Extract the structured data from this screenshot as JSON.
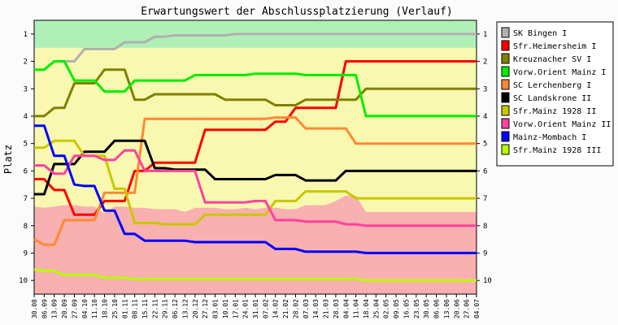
{
  "chart_data": {
    "type": "line",
    "title": "Erwartungswert der Abschlussplatzierung (Verlauf)",
    "ylabel": "Platz",
    "xlabel": "",
    "ylim": [
      1,
      10
    ],
    "y_inverted": true,
    "grid": false,
    "legend_position": "right",
    "y_ticks": [
      "1",
      "2",
      "3",
      "4",
      "5",
      "6",
      "7",
      "8",
      "9",
      "10"
    ],
    "categories": [
      "30.08",
      "06.09",
      "13.09",
      "20.09",
      "27.09",
      "04.10",
      "11.10",
      "18.10",
      "25.10",
      "01.11",
      "08.11",
      "15.11",
      "22.11",
      "29.11",
      "06.12",
      "13.12",
      "20.12",
      "27.12",
      "03.01",
      "10.01",
      "17.01",
      "24.01",
      "31.01",
      "07.02",
      "14.02",
      "21.02",
      "28.02",
      "07.03",
      "14.03",
      "21.03",
      "28.03",
      "04.04",
      "11.04",
      "18.04",
      "25.04",
      "02.05",
      "09.05",
      "16.05",
      "23.05",
      "30.05",
      "06.06",
      "13.06",
      "20.06",
      "27.06",
      "04.07"
    ],
    "background_bands": {
      "top_band_color": "#b0f0b8",
      "middle_band_color": "#f8f8b0",
      "bottom_band_color": "#f8b0b0",
      "top_band_upper": [
        0.5,
        0.5,
        0.5,
        0.5,
        0.5,
        0.5,
        0.5,
        0.5,
        0.5,
        0.5,
        0.5,
        0.5,
        0.5,
        0.5,
        0.5,
        0.5,
        0.5,
        0.5,
        0.5,
        0.5,
        0.5,
        0.5,
        0.5,
        0.5,
        0.5,
        0.5,
        0.5,
        0.5,
        0.5,
        0.5,
        0.5,
        0.5,
        0.5,
        0.5,
        0.5,
        0.5,
        0.5,
        0.5,
        0.5,
        0.5,
        0.5,
        0.5,
        0.5,
        0.5,
        0.5
      ],
      "top_band_lower": [
        1.5,
        1.5,
        1.5,
        1.5,
        1.5,
        1.5,
        1.5,
        1.5,
        1.5,
        1.5,
        1.5,
        1.5,
        1.5,
        1.5,
        1.5,
        1.5,
        1.5,
        1.5,
        1.5,
        1.5,
        1.5,
        1.5,
        1.5,
        1.5,
        1.5,
        1.5,
        1.5,
        1.5,
        1.5,
        1.5,
        1.5,
        1.5,
        1.5,
        1.5,
        1.5,
        1.5,
        1.5,
        1.5,
        1.5,
        1.5,
        1.5,
        1.5,
        1.5,
        1.5,
        1.5
      ],
      "bottom_band_upper": [
        7.3,
        7.35,
        7.3,
        7.25,
        7.25,
        7.3,
        7.3,
        7.55,
        7.3,
        7.3,
        7.35,
        7.35,
        7.4,
        7.4,
        7.4,
        7.5,
        7.35,
        7.35,
        7.35,
        7.4,
        7.4,
        7.35,
        7.4,
        7.35,
        7.35,
        7.4,
        7.4,
        7.25,
        7.25,
        7.25,
        7.1,
        6.9,
        6.9,
        7.5,
        7.5,
        7.5,
        7.5,
        7.5,
        7.5,
        7.5,
        7.5,
        7.5,
        7.5,
        7.5,
        7.5
      ],
      "bottom_band_lower": [
        10.5,
        10.5,
        10.5,
        10.5,
        10.5,
        10.5,
        10.5,
        10.5,
        10.5,
        10.5,
        10.5,
        10.5,
        10.5,
        10.5,
        10.5,
        10.5,
        10.5,
        10.5,
        10.5,
        10.5,
        10.5,
        10.5,
        10.5,
        10.5,
        10.5,
        10.5,
        10.5,
        10.5,
        10.5,
        10.5,
        10.5,
        10.5,
        10.5,
        10.5,
        10.5,
        10.5,
        10.5,
        10.5,
        10.5,
        10.5,
        10.5,
        10.5,
        10.5,
        10.5,
        10.5
      ]
    },
    "series": [
      {
        "name": "SK Bingen I",
        "color": "#b0b0b0",
        "values": [
          2.3,
          2.3,
          2.0,
          2.0,
          2.0,
          1.55,
          1.55,
          1.55,
          1.55,
          1.3,
          1.3,
          1.3,
          1.1,
          1.1,
          1.05,
          1.05,
          1.05,
          1.05,
          1.05,
          1.05,
          1.0,
          1.0,
          1.0,
          1.0,
          1.0,
          1.0,
          1.0,
          1.0,
          1.0,
          1.0,
          1.0,
          1.0,
          1.0,
          1.0,
          1.0,
          1.0,
          1.0,
          1.0,
          1.0,
          1.0,
          1.0,
          1.0,
          1.0,
          1.0,
          1.0
        ]
      },
      {
        "name": "Sfr.Heimersheim I",
        "color": "#ff0000",
        "values": [
          6.3,
          6.3,
          6.7,
          6.7,
          7.6,
          7.6,
          7.6,
          7.1,
          7.1,
          7.1,
          6.0,
          6.0,
          5.7,
          5.7,
          5.7,
          5.7,
          5.7,
          4.5,
          4.5,
          4.5,
          4.5,
          4.5,
          4.5,
          4.5,
          4.2,
          4.2,
          3.7,
          3.7,
          3.7,
          3.7,
          3.7,
          2.0,
          2.0,
          2.0,
          2.0,
          2.0,
          2.0,
          2.0,
          2.0,
          2.0,
          2.0,
          2.0,
          2.0,
          2.0,
          2.0
        ]
      },
      {
        "name": "Kreuznacher SV  I",
        "color": "#808000",
        "values": [
          4.0,
          4.0,
          3.7,
          3.7,
          2.8,
          2.8,
          2.8,
          2.3,
          2.3,
          2.3,
          3.4,
          3.4,
          3.2,
          3.2,
          3.2,
          3.2,
          3.2,
          3.2,
          3.2,
          3.4,
          3.4,
          3.4,
          3.4,
          3.4,
          3.6,
          3.6,
          3.6,
          3.4,
          3.4,
          3.4,
          3.4,
          3.4,
          3.4,
          3.0,
          3.0,
          3.0,
          3.0,
          3.0,
          3.0,
          3.0,
          3.0,
          3.0,
          3.0,
          3.0,
          3.0
        ]
      },
      {
        "name": "Vorw.Orient Mainz I",
        "color": "#00ee00",
        "values": [
          2.3,
          2.3,
          2.0,
          2.0,
          2.7,
          2.7,
          2.7,
          3.1,
          3.1,
          3.1,
          2.7,
          2.7,
          2.7,
          2.7,
          2.7,
          2.7,
          2.5,
          2.5,
          2.5,
          2.5,
          2.5,
          2.5,
          2.45,
          2.45,
          2.45,
          2.45,
          2.45,
          2.5,
          2.5,
          2.5,
          2.5,
          2.5,
          2.5,
          4.0,
          4.0,
          4.0,
          4.0,
          4.0,
          4.0,
          4.0,
          4.0,
          4.0,
          4.0,
          4.0,
          4.0
        ]
      },
      {
        "name": "SC Lerchenberg I",
        "color": "#ff8833",
        "values": [
          8.5,
          8.7,
          8.7,
          7.8,
          7.8,
          7.8,
          7.8,
          6.8,
          6.8,
          6.8,
          6.8,
          4.1,
          4.1,
          4.1,
          4.1,
          4.1,
          4.1,
          4.1,
          4.1,
          4.1,
          4.1,
          4.1,
          4.1,
          4.1,
          4.05,
          4.05,
          4.05,
          4.45,
          4.45,
          4.45,
          4.45,
          4.45,
          5.0,
          5.0,
          5.0,
          5.0,
          5.0,
          5.0,
          5.0,
          5.0,
          5.0,
          5.0,
          5.0,
          5.0,
          5.0
        ]
      },
      {
        "name": "SC Landskrone II",
        "color": "#000000",
        "values": [
          6.85,
          6.85,
          5.75,
          5.75,
          5.75,
          5.3,
          5.3,
          5.3,
          4.9,
          4.9,
          4.9,
          4.9,
          5.9,
          5.9,
          5.95,
          5.95,
          5.95,
          5.95,
          6.3,
          6.3,
          6.3,
          6.3,
          6.3,
          6.3,
          6.15,
          6.15,
          6.15,
          6.35,
          6.35,
          6.35,
          6.35,
          6.0,
          6.0,
          6.0,
          6.0,
          6.0,
          6.0,
          6.0,
          6.0,
          6.0,
          6.0,
          6.0,
          6.0,
          6.0,
          6.0
        ]
      },
      {
        "name": "Sfr.Mainz 1928 II",
        "color": "#c8c800",
        "values": [
          5.15,
          5.15,
          4.9,
          4.9,
          4.9,
          5.45,
          5.45,
          5.45,
          6.65,
          6.65,
          7.9,
          7.9,
          7.9,
          7.95,
          7.95,
          7.95,
          7.95,
          7.6,
          7.6,
          7.6,
          7.6,
          7.6,
          7.6,
          7.6,
          7.1,
          7.1,
          7.1,
          6.75,
          6.75,
          6.75,
          6.75,
          6.75,
          7.0,
          7.0,
          7.0,
          7.0,
          7.0,
          7.0,
          7.0,
          7.0,
          7.0,
          7.0,
          7.0,
          7.0,
          7.0
        ]
      },
      {
        "name": "Vorw.Orient Mainz II",
        "color": "#ff40a0",
        "values": [
          5.8,
          5.8,
          6.1,
          6.1,
          5.45,
          5.45,
          5.45,
          5.6,
          5.6,
          5.25,
          5.25,
          6.0,
          6.0,
          6.0,
          6.0,
          6.0,
          6.0,
          7.15,
          7.15,
          7.15,
          7.15,
          7.15,
          7.1,
          7.1,
          7.8,
          7.8,
          7.8,
          7.85,
          7.85,
          7.85,
          7.85,
          7.95,
          7.95,
          8.0,
          8.0,
          8.0,
          8.0,
          8.0,
          8.0,
          8.0,
          8.0,
          8.0,
          8.0,
          8.0,
          8.0
        ]
      },
      {
        "name": "Mainz-Mombach I",
        "color": "#0000ff",
        "values": [
          4.35,
          4.35,
          5.45,
          5.45,
          6.5,
          6.55,
          6.55,
          7.45,
          7.45,
          8.3,
          8.3,
          8.55,
          8.55,
          8.55,
          8.55,
          8.55,
          8.6,
          8.6,
          8.6,
          8.6,
          8.6,
          8.6,
          8.6,
          8.6,
          8.85,
          8.85,
          8.85,
          8.95,
          8.95,
          8.95,
          8.95,
          8.95,
          8.95,
          9.0,
          9.0,
          9.0,
          9.0,
          9.0,
          9.0,
          9.0,
          9.0,
          9.0,
          9.0,
          9.0,
          9.0
        ]
      },
      {
        "name": "Sfr.Mainz 1928 III",
        "color": "#b8ff00",
        "values": [
          9.6,
          9.65,
          9.65,
          9.8,
          9.8,
          9.8,
          9.8,
          9.9,
          9.9,
          9.9,
          9.95,
          9.95,
          9.95,
          9.95,
          9.95,
          9.95,
          9.95,
          9.95,
          9.95,
          9.95,
          9.95,
          9.95,
          9.95,
          9.95,
          9.95,
          9.95,
          9.95,
          9.95,
          9.95,
          9.95,
          9.95,
          9.95,
          9.95,
          10.0,
          10.0,
          10.0,
          10.0,
          10.0,
          10.0,
          10.0,
          10.0,
          10.0,
          10.0,
          10.0,
          10.0
        ]
      }
    ]
  }
}
